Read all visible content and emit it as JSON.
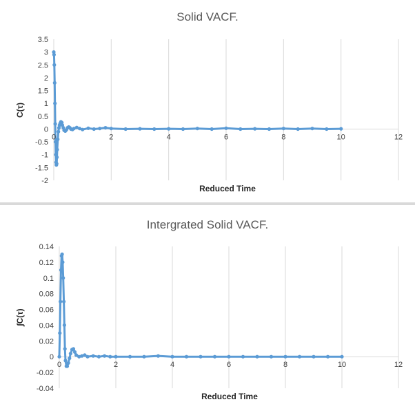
{
  "series_color": "#5B9BD5",
  "grid_color": "#D9D9D9",
  "chart_data": [
    {
      "type": "scatter",
      "title": "Solid VACF.",
      "xlabel": "Reduced Time",
      "ylabel": "C(τ)",
      "xlim": [
        0,
        12
      ],
      "ylim": [
        -2,
        3.5
      ],
      "xticks": [
        0,
        2,
        4,
        6,
        8,
        10,
        12
      ],
      "yticks": [
        3.5,
        3,
        2.5,
        2,
        1.5,
        1,
        0.5,
        0,
        -0.5,
        -1,
        -1.5,
        -2
      ],
      "grid": "vertical",
      "series": [
        {
          "x": [
            0.0,
            0.01,
            0.02,
            0.03,
            0.04,
            0.05,
            0.06,
            0.07,
            0.08,
            0.09,
            0.1,
            0.11,
            0.12,
            0.14,
            0.16,
            0.18,
            0.2,
            0.22,
            0.25,
            0.28,
            0.3,
            0.33,
            0.36,
            0.4,
            0.44,
            0.48,
            0.52,
            0.56,
            0.6,
            0.65,
            0.7,
            0.8,
            0.9,
            1.0,
            1.2,
            1.4,
            1.6,
            1.8,
            2.0,
            2.5,
            3.0,
            3.5,
            4.0,
            4.5,
            5.0,
            5.5,
            6.0,
            6.5,
            7.0,
            7.5,
            8.0,
            8.5,
            9.0,
            9.5,
            10.0
          ],
          "y": [
            3.0,
            2.9,
            2.5,
            1.8,
            1.0,
            0.2,
            -0.5,
            -1.0,
            -1.3,
            -1.4,
            -1.35,
            -1.1,
            -0.8,
            -0.4,
            -0.1,
            0.05,
            0.15,
            0.22,
            0.28,
            0.25,
            0.15,
            0.05,
            -0.05,
            -0.08,
            -0.03,
            0.05,
            0.08,
            0.05,
            0.0,
            -0.02,
            0.02,
            0.06,
            0.02,
            -0.02,
            0.03,
            0.0,
            0.02,
            0.05,
            0.02,
            0.0,
            0.01,
            0.0,
            0.01,
            0.0,
            0.02,
            0.0,
            0.03,
            0.0,
            0.01,
            0.0,
            0.02,
            0.0,
            0.02,
            0.0,
            0.01
          ]
        }
      ]
    },
    {
      "type": "scatter",
      "title": "Intergrated Solid VACF.",
      "xlabel": "Reduced Time",
      "ylabel": "∫C(τ)",
      "xlim": [
        0,
        12
      ],
      "ylim": [
        -0.04,
        0.14
      ],
      "xticks": [
        0,
        2,
        4,
        6,
        8,
        10,
        12
      ],
      "yticks": [
        0.14,
        0.12,
        0.1,
        0.08,
        0.06,
        0.04,
        0.02,
        0,
        -0.02,
        -0.04
      ],
      "grid": "vertical",
      "series": [
        {
          "x": [
            0.0,
            0.02,
            0.04,
            0.06,
            0.08,
            0.1,
            0.12,
            0.14,
            0.16,
            0.18,
            0.2,
            0.22,
            0.25,
            0.28,
            0.32,
            0.36,
            0.4,
            0.45,
            0.5,
            0.55,
            0.6,
            0.7,
            0.8,
            0.9,
            1.0,
            1.2,
            1.4,
            1.6,
            1.8,
            2.0,
            2.5,
            3.0,
            3.5,
            4.0,
            4.5,
            5.0,
            5.5,
            6.0,
            6.5,
            7.0,
            7.5,
            8.0,
            8.5,
            9.0,
            9.5,
            10.0
          ],
          "y": [
            0.0,
            0.03,
            0.07,
            0.11,
            0.128,
            0.13,
            0.12,
            0.1,
            0.07,
            0.04,
            0.01,
            -0.005,
            -0.012,
            -0.012,
            -0.008,
            -0.002,
            0.004,
            0.009,
            0.01,
            0.006,
            0.002,
            0.0,
            0.001,
            0.002,
            0.0,
            0.001,
            0.0,
            0.001,
            0.0,
            0.0,
            0.0,
            0.0,
            0.001,
            0.0,
            0.0,
            0.0,
            0.0,
            0.0,
            0.0,
            0.0,
            0.0,
            0.0,
            0.0,
            0.0,
            0.0,
            0.0
          ]
        }
      ]
    }
  ]
}
